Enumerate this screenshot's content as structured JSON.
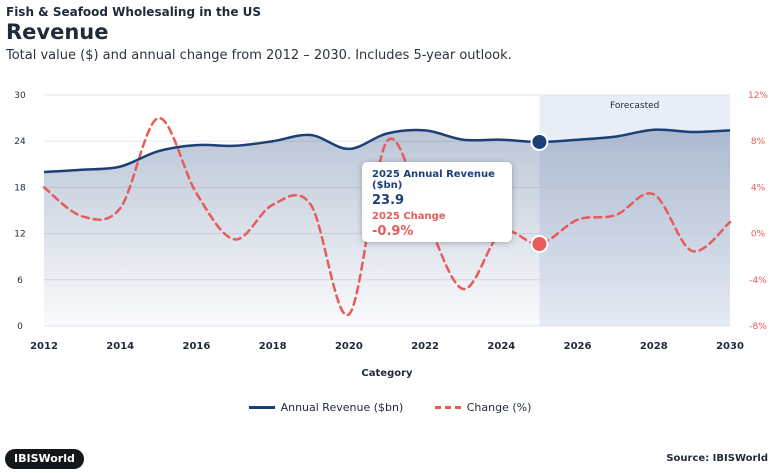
{
  "header": {
    "kicker": "Fish & Seafood Wholesaling in the US",
    "title": "Revenue",
    "subtitle": "Total value ($) and annual change from 2012 – 2030. Includes 5-year outlook."
  },
  "chart_data": {
    "type": "line",
    "xlabel": "Category",
    "x": [
      2012,
      2013,
      2014,
      2015,
      2016,
      2017,
      2018,
      2019,
      2020,
      2021,
      2022,
      2023,
      2024,
      2025,
      2026,
      2027,
      2028,
      2029,
      2030
    ],
    "x_ticks": [
      "2012",
      "2014",
      "2016",
      "2018",
      "2020",
      "2022",
      "2024",
      "2026",
      "2028",
      "2030"
    ],
    "y_left": {
      "ticks": [
        "0",
        "6",
        "12",
        "18",
        "24",
        "30"
      ],
      "range": [
        0,
        30
      ]
    },
    "y_right": {
      "ticks": [
        "-8%",
        "-4%",
        "0%",
        "4%",
        "8%",
        "12%"
      ],
      "range": [
        -8,
        12
      ]
    },
    "series": [
      {
        "name": "Annual Revenue ($bn)",
        "axis": "left",
        "color": "#1c3f78",
        "values": [
          20.0,
          20.3,
          20.7,
          22.7,
          23.5,
          23.4,
          24.0,
          24.8,
          23.0,
          25.0,
          25.4,
          24.2,
          24.2,
          23.9,
          24.2,
          24.6,
          25.5,
          25.2,
          25.4
        ]
      },
      {
        "name": "Change (%)",
        "axis": "right",
        "color": "#e85b5b",
        "values": [
          4.0,
          1.5,
          2.2,
          10.0,
          3.5,
          -0.5,
          2.5,
          2.5,
          -7.0,
          8.0,
          1.5,
          -4.8,
          0.1,
          -0.9,
          1.2,
          1.6,
          3.4,
          -1.5,
          1.0
        ]
      }
    ],
    "forecast": {
      "label": "Forecasted",
      "from": 2025,
      "to": 2030
    },
    "highlight": {
      "x": 2025,
      "revenue_label": "2025 Annual Revenue ($bn)",
      "revenue_value": "23.9",
      "change_label": "2025 Change",
      "change_value": "-0.9%"
    },
    "grid": true,
    "legend": "bottom-center"
  },
  "footer": {
    "logo": "IBISWorld",
    "source": "Source: IBISWorld"
  }
}
